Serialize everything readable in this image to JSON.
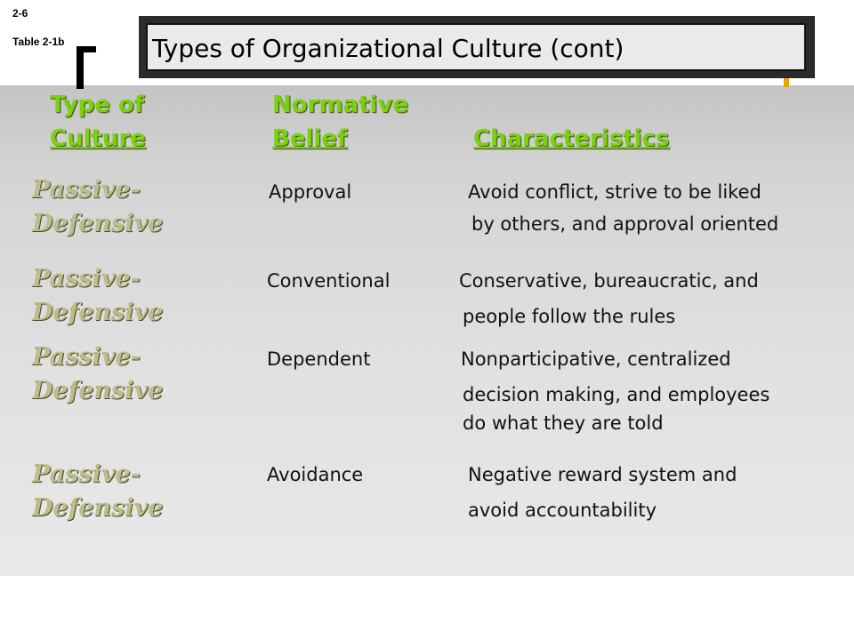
{
  "slide": {
    "number": "2-6",
    "table_ref": "Table 2-1b"
  },
  "title": "Types of Organizational Culture (cont)",
  "headers": {
    "type": [
      "Type of",
      "Culture"
    ],
    "belief": [
      "Normative",
      "Belief"
    ],
    "characteristics": "Characteristics"
  },
  "rows": [
    {
      "type": [
        "Passive-",
        "Defensive"
      ],
      "belief": "Approval",
      "characteristics": [
        "Avoid conflict, strive to be liked",
        "by others, and approval oriented"
      ]
    },
    {
      "type": [
        "Passive-",
        "Defensive"
      ],
      "belief": "Conventional",
      "characteristics": [
        "Conservative, bureaucratic, and",
        "people follow the rules"
      ]
    },
    {
      "type": [
        "Passive-",
        "Defensive"
      ],
      "belief": "Dependent",
      "characteristics": [
        "Nonparticipative, centralized",
        "decision making, and employees",
        "do what they are told"
      ]
    },
    {
      "type": [
        "Passive-",
        "Defensive"
      ],
      "belief": "Avoidance",
      "characteristics": [
        "Negative reward system and",
        "avoid accountability"
      ]
    }
  ],
  "colors": {
    "header_green": "#7cd010",
    "passive_defensive": "#bdbd8a",
    "title_frame": "#2b2b2b",
    "accent_yellow": "#e0a800"
  }
}
